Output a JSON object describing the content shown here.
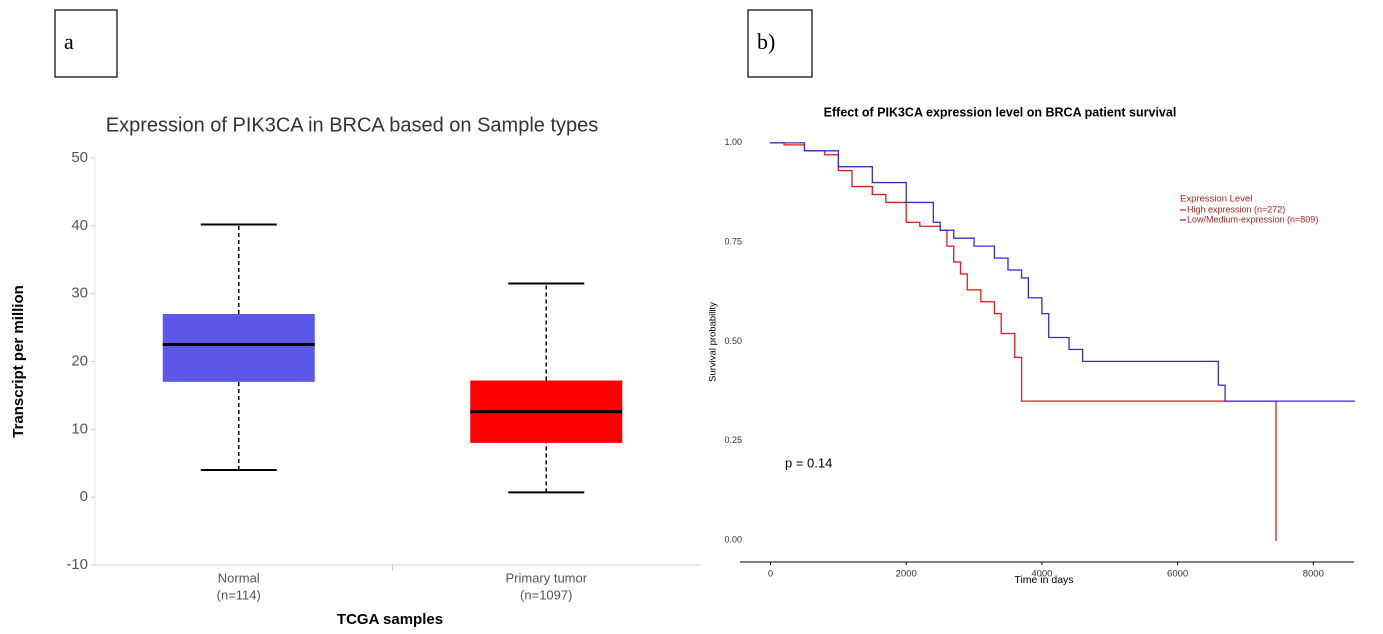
{
  "chart_data": [
    {
      "type": "box",
      "panel_label": "a",
      "title": "Expression of PIK3CA in BRCA based on Sample types",
      "y_label": "Transcript per million",
      "x_label": "TCGA samples",
      "categories": [
        "Normal",
        "Primary tumor"
      ],
      "category_notes": [
        "(n=114)",
        "(n=1097)"
      ],
      "boxes": [
        {
          "min": 4,
          "q1": 17,
          "median": 22.5,
          "q3": 27,
          "max": 40.2,
          "color": "#5b57e8"
        },
        {
          "min": 0.7,
          "q1": 8,
          "median": 12.6,
          "q3": 17.2,
          "max": 31.5,
          "color": "#ff0000"
        }
      ],
      "ylim": [
        -10,
        50
      ],
      "yticks": [
        -10,
        0,
        10,
        20,
        30,
        40,
        50
      ]
    },
    {
      "type": "line",
      "step": true,
      "panel_label": "b)",
      "title": "Effect of PIK3CA expression level on BRCA patient survival",
      "x_label": "Time in days",
      "y_label": "Survival probability",
      "annotation": "p = 0.14",
      "legend_title": "Expression Level",
      "legend": "upper right",
      "xlim": [
        -450,
        8600
      ],
      "xticks": [
        0,
        2000,
        4000,
        6000,
        8000
      ],
      "ylim": [
        -0.055,
        1.055
      ],
      "yticks": [
        {
          "value": 0,
          "label": "0.00"
        },
        {
          "value": 0.25,
          "label": "0.25"
        },
        {
          "value": 0.5,
          "label": "0.50"
        },
        {
          "value": 0.75,
          "label": "0.75"
        },
        {
          "value": 1,
          "label": "1.00"
        }
      ],
      "series": [
        {
          "name": "High expression (n=272)",
          "color": "#e41a1c",
          "x": [
            0,
            200,
            500,
            800,
            1000,
            1200,
            1500,
            1700,
            2000,
            2200,
            2500,
            2600,
            2700,
            2800,
            2900,
            3100,
            3300,
            3400,
            3600,
            3700,
            7450,
            7450
          ],
          "values": [
            1.0,
            0.995,
            0.98,
            0.97,
            0.93,
            0.89,
            0.87,
            0.85,
            0.8,
            0.79,
            0.78,
            0.74,
            0.7,
            0.67,
            0.63,
            0.6,
            0.57,
            0.52,
            0.46,
            0.35,
            0.35,
            0.0
          ]
        },
        {
          "name": "Low/Medium-expression (n=809)",
          "color": "#3b2bd6",
          "x": [
            0,
            500,
            1000,
            1500,
            2000,
            2400,
            2500,
            2700,
            3000,
            3300,
            3500,
            3700,
            3800,
            4000,
            4100,
            4400,
            4600,
            6500,
            6600,
            6700,
            8600
          ],
          "values": [
            1.0,
            0.98,
            0.94,
            0.9,
            0.85,
            0.8,
            0.78,
            0.76,
            0.74,
            0.71,
            0.68,
            0.66,
            0.61,
            0.57,
            0.51,
            0.48,
            0.45,
            0.45,
            0.39,
            0.35,
            0.35
          ]
        }
      ]
    }
  ]
}
